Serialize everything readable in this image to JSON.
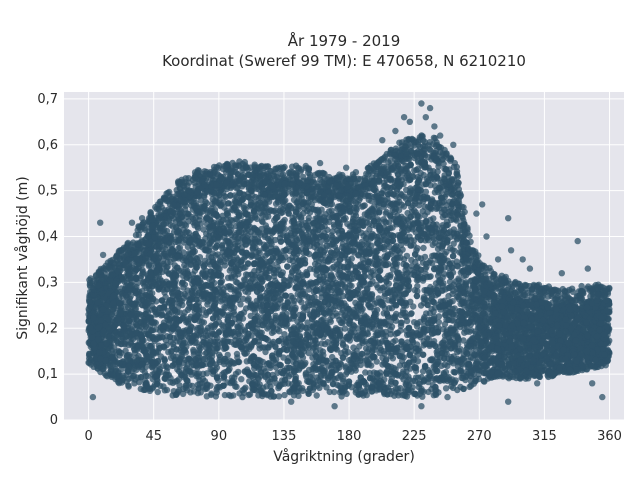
{
  "chart_data": {
    "type": "scatter",
    "title_line1": "År 1979 - 2019",
    "title_line2": "Koordinat (Sweref 99 TM): E 470658, N 6210210",
    "xlabel": "Vågriktning (grader)",
    "ylabel": "Signifikant våghöjd (m)",
    "xlim": [
      -17,
      370
    ],
    "ylim": [
      0,
      0.715
    ],
    "xticks": [
      0,
      45,
      90,
      135,
      180,
      225,
      270,
      315,
      360
    ],
    "xtick_labels": [
      "0",
      "45",
      "90",
      "135",
      "180",
      "225",
      "270",
      "315",
      "360"
    ],
    "yticks": [
      0,
      0.1,
      0.2,
      0.3,
      0.4,
      0.5,
      0.6,
      0.7
    ],
    "ytick_labels": [
      "0",
      "0,1",
      "0,2",
      "0,3",
      "0,4",
      "0,5",
      "0,6",
      "0,7"
    ],
    "grid": true,
    "background": "#e5e5ec",
    "marker_color": "#2e5268",
    "envelope": {
      "direction": [
        0,
        10,
        20,
        30,
        45,
        60,
        75,
        90,
        105,
        120,
        135,
        150,
        165,
        180,
        195,
        210,
        225,
        240,
        255,
        262,
        270,
        280,
        300,
        315,
        330,
        345,
        360
      ],
      "upper": [
        0.27,
        0.3,
        0.33,
        0.37,
        0.43,
        0.48,
        0.51,
        0.52,
        0.53,
        0.52,
        0.52,
        0.52,
        0.5,
        0.5,
        0.52,
        0.56,
        0.59,
        0.58,
        0.52,
        0.38,
        0.32,
        0.29,
        0.26,
        0.26,
        0.25,
        0.26,
        0.26
      ],
      "lower": [
        0.12,
        0.1,
        0.08,
        0.07,
        0.06,
        0.05,
        0.05,
        0.05,
        0.05,
        0.05,
        0.05,
        0.05,
        0.05,
        0.05,
        0.05,
        0.05,
        0.05,
        0.05,
        0.06,
        0.07,
        0.08,
        0.09,
        0.09,
        0.09,
        0.1,
        0.11,
        0.12
      ]
    },
    "outliers": [
      [
        8,
        0.43
      ],
      [
        3,
        0.05
      ],
      [
        10,
        0.36
      ],
      [
        30,
        0.43
      ],
      [
        37,
        0.44
      ],
      [
        48,
        0.47
      ],
      [
        62,
        0.52
      ],
      [
        95,
        0.54
      ],
      [
        118,
        0.55
      ],
      [
        160,
        0.56
      ],
      [
        178,
        0.55
      ],
      [
        203,
        0.61
      ],
      [
        212,
        0.63
      ],
      [
        218,
        0.66
      ],
      [
        222,
        0.65
      ],
      [
        230,
        0.69
      ],
      [
        233,
        0.66
      ],
      [
        236,
        0.68
      ],
      [
        239,
        0.64
      ],
      [
        243,
        0.62
      ],
      [
        252,
        0.6
      ],
      [
        248,
        0.05
      ],
      [
        230,
        0.03
      ],
      [
        170,
        0.03
      ],
      [
        140,
        0.04
      ],
      [
        262,
        0.33
      ],
      [
        268,
        0.45
      ],
      [
        272,
        0.47
      ],
      [
        275,
        0.4
      ],
      [
        283,
        0.35
      ],
      [
        290,
        0.44
      ],
      [
        292,
        0.37
      ],
      [
        300,
        0.35
      ],
      [
        305,
        0.33
      ],
      [
        320,
        0.28
      ],
      [
        327,
        0.32
      ],
      [
        338,
        0.39
      ],
      [
        345,
        0.33
      ],
      [
        348,
        0.08
      ],
      [
        355,
        0.05
      ],
      [
        310,
        0.08
      ],
      [
        290,
        0.04
      ]
    ]
  }
}
